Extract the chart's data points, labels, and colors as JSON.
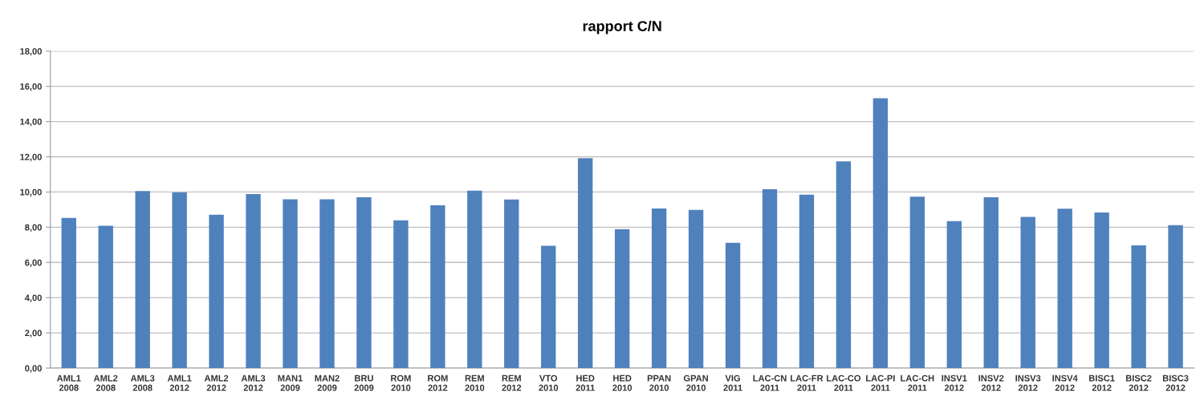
{
  "chart_data": {
    "type": "bar",
    "title": "rapport C/N",
    "categories": [
      "AML1\n2008",
      "AML2\n2008",
      "AML3\n2008",
      "AML1\n2012",
      "AML2\n2012",
      "AML3\n2012",
      "MAN1\n2009",
      "MAN2\n2009",
      "BRU\n2009",
      "ROM\n2010",
      "ROM\n2012",
      "REM\n2010",
      "REM\n2012",
      "VTO\n2010",
      "HED\n2011",
      "HED\n2010",
      "PPAN\n2010",
      "GPAN\n2010",
      "VIG\n2011",
      "LAC-CN\n2011",
      "LAC-FR\n2011",
      "LAC-CO\n2011",
      "LAC-PI\n2011",
      "LAC-CH\n2011",
      "INSV1\n2012",
      "INSV2\n2012",
      "INSV3\n2012",
      "INSV4\n2012",
      "BISC1\n2012",
      "BISC2\n2012",
      "BISC3\n2012"
    ],
    "values": [
      8.53,
      8.08,
      10.05,
      9.97,
      8.71,
      9.88,
      9.59,
      9.59,
      9.7,
      8.39,
      9.24,
      10.08,
      9.58,
      6.94,
      11.92,
      7.89,
      9.06,
      8.98,
      7.12,
      10.15,
      9.85,
      11.74,
      15.33,
      9.74,
      8.35,
      9.7,
      8.58,
      9.05,
      8.83,
      6.97,
      8.12
    ],
    "color": "#4f81bd",
    "ylim": [
      0,
      18
    ],
    "yticks": [
      {
        "value": 0,
        "label": "0,00"
      },
      {
        "value": 2,
        "label": "2,00"
      },
      {
        "value": 4,
        "label": "4,00"
      },
      {
        "value": 6,
        "label": "6,00"
      },
      {
        "value": 8,
        "label": "8,00"
      },
      {
        "value": 10,
        "label": "10,00"
      },
      {
        "value": 12,
        "label": "12,00"
      },
      {
        "value": 14,
        "label": "14,00"
      },
      {
        "value": 16,
        "label": "16,00"
      },
      {
        "value": 18,
        "label": "18,00"
      }
    ],
    "grid": "y"
  }
}
